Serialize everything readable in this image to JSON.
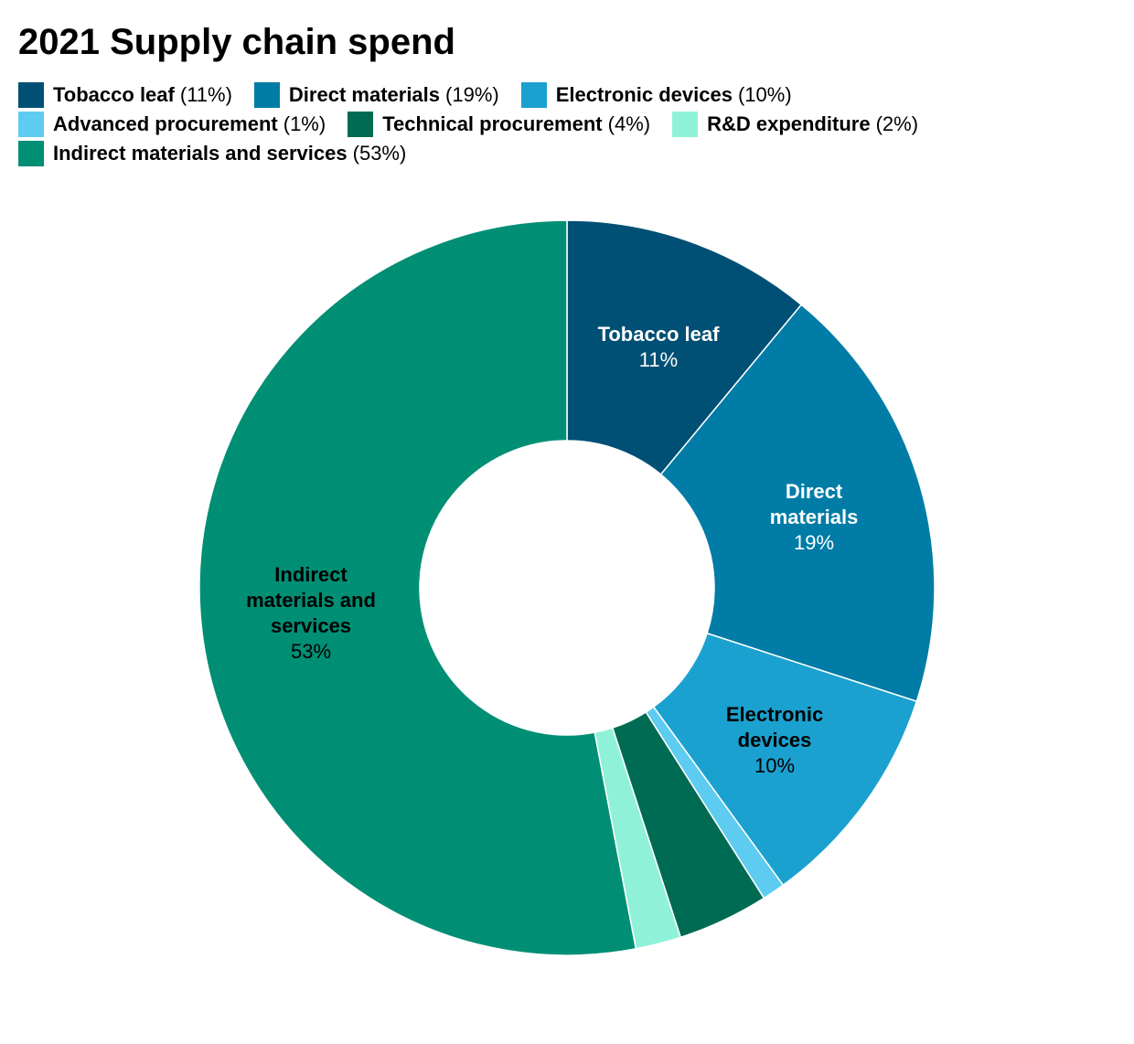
{
  "title": "2021 Supply chain spend",
  "chart_data": {
    "type": "pie",
    "donut": true,
    "legend_position": "top",
    "slices": [
      {
        "label": "Tobacco leaf",
        "value": 11,
        "value_label": "11%",
        "color": "#004f74",
        "chart_label_lines": [
          "Tobacco leaf"
        ],
        "label_color": "#ffffff"
      },
      {
        "label": "Direct materials",
        "value": 19,
        "value_label": "19%",
        "color": "#007ca6",
        "chart_label_lines": [
          "Direct",
          "materials"
        ],
        "label_color": "#ffffff"
      },
      {
        "label": "Electronic devices",
        "value": 10,
        "value_label": "10%",
        "color": "#1ba1cf",
        "chart_label_lines": [
          "Electronic",
          "devices"
        ],
        "label_color": "#000000"
      },
      {
        "label": "Advanced procurement",
        "value": 1,
        "value_label": "1%",
        "color": "#5ecbf0",
        "chart_label_lines": [],
        "label_color": "#000000"
      },
      {
        "label": "Technical procurement",
        "value": 4,
        "value_label": "4%",
        "color": "#006b53",
        "chart_label_lines": [],
        "label_color": "#ffffff"
      },
      {
        "label": "R&D expenditure",
        "value": 2,
        "value_label": "2%",
        "color": "#8ff2d8",
        "chart_label_lines": [],
        "label_color": "#000000"
      },
      {
        "label": "Indirect materials and services",
        "value": 53,
        "value_label": "53%",
        "color": "#008f74",
        "chart_label_lines": [
          "Indirect",
          "materials and",
          "services"
        ],
        "label_color": "#000000"
      }
    ]
  }
}
